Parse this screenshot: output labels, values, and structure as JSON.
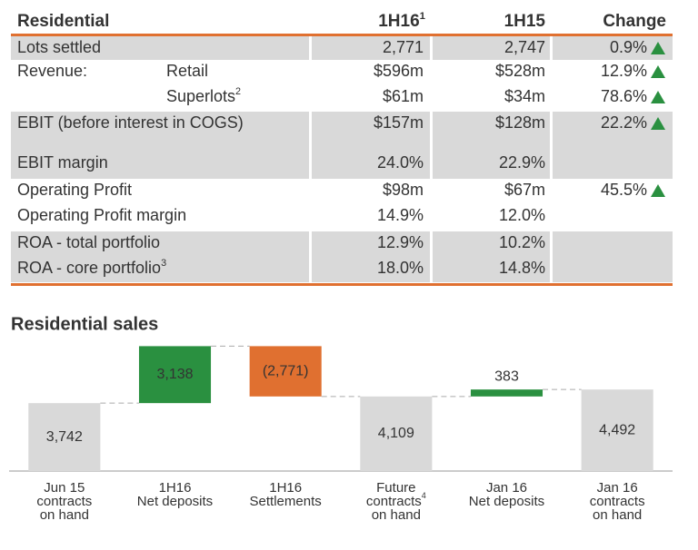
{
  "table": {
    "header": {
      "title": "Residential",
      "col1": "1H16",
      "col1_sup": "1",
      "col2": "1H15",
      "col3": "Change"
    },
    "rows": [
      {
        "label": "Lots settled",
        "cur": "2,771",
        "prev": "2,747",
        "change": "0.9%",
        "shaded": true
      },
      {
        "label": "Revenue:",
        "sublabel": "Retail",
        "cur": "$596m",
        "prev": "$528m",
        "change": "12.9%",
        "shaded": false
      },
      {
        "sublabel": "Superlots",
        "sup": "2",
        "cur": "$61m",
        "prev": "$34m",
        "change": "78.6%",
        "shaded": false
      },
      {
        "label": "EBIT (before interest in COGS)",
        "cur": "$157m",
        "prev": "$128m",
        "change": "22.2%",
        "shaded": true
      },
      {
        "label": "EBIT margin",
        "cur": "24.0%",
        "prev": "22.9%",
        "shaded": true
      },
      {
        "label": "Operating Profit",
        "cur": "$98m",
        "prev": "$67m",
        "change": "45.5%",
        "shaded": false
      },
      {
        "label": "Operating Profit margin",
        "cur": "14.9%",
        "prev": "12.0%",
        "shaded": false
      },
      {
        "label": "ROA - total portfolio",
        "cur": "12.9%",
        "prev": "10.2%",
        "shaded": true
      },
      {
        "label": "ROA - core portfolio",
        "sup": "3",
        "cur": "18.0%",
        "prev": "14.8%",
        "shaded": true
      }
    ]
  },
  "chart_data": {
    "type": "waterfall",
    "title": "Residential sales",
    "categories": [
      [
        "Jun 15",
        "contracts",
        "on hand"
      ],
      [
        "1H16",
        "Net deposits"
      ],
      [
        "1H16",
        "Settlements"
      ],
      [
        "Future",
        "contracts",
        "on hand"
      ],
      [
        "Jan 16",
        "Net deposits"
      ],
      [
        "Jan 16",
        "contracts",
        "on hand"
      ]
    ],
    "category_sups": [
      null,
      null,
      null,
      "4",
      null,
      null
    ],
    "values": [
      3742,
      3138,
      -2771,
      4109,
      383,
      4492
    ],
    "value_labels": [
      "3,742",
      "3,138",
      "(2,771)",
      "4,109",
      "383",
      "4,492"
    ],
    "kinds": [
      "total",
      "increase",
      "decrease",
      "total",
      "increase",
      "total"
    ],
    "colors": {
      "total": "#d9d9d9",
      "increase": "#2a9040",
      "decrease": "#e07030"
    },
    "ylim": [
      0,
      7000
    ]
  }
}
